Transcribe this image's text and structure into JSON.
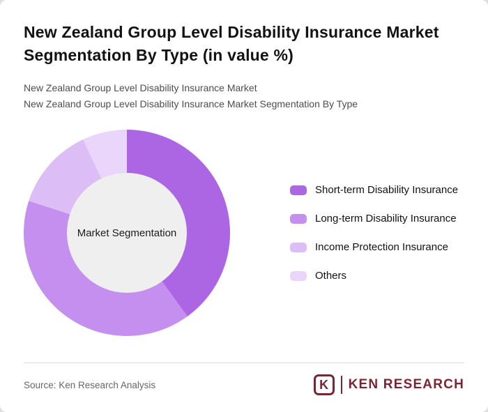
{
  "header": {
    "title": "New Zealand Group Level Disability Insurance Market Segmentation By Type (in value %)",
    "subtitle_line1": "New Zealand Group Level Disability Insurance Market",
    "subtitle_line2": "New Zealand Group Level Disability Insurance Market Segmentation By Type"
  },
  "chart_data": {
    "type": "pie",
    "donut": true,
    "title": "New Zealand Group Level Disability Insurance Market Segmentation By Type (in value %)",
    "center_label": "Market Segmentation",
    "categories": [
      "Short-term Disability Insurance",
      "Long-term Disability Insurance",
      "Income Protection Insurance",
      "Others"
    ],
    "values": [
      40,
      40,
      13,
      7
    ],
    "unit": "%",
    "colors": [
      "#AD66E3",
      "#C48FEE",
      "#DDBDF6",
      "#EAD6FA"
    ],
    "legend_position": "right",
    "start_angle_deg": 0,
    "direction": "clockwise"
  },
  "footer": {
    "source": "Source: Ken Research Analysis",
    "logo": {
      "k_letter": "K",
      "brand": "KEN RESEARCH",
      "color": "#7d2433"
    }
  }
}
